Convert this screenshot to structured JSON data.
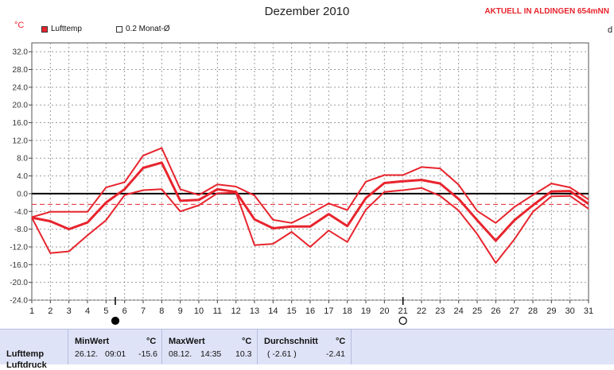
{
  "header": {
    "title": "Dezember 2010",
    "location": "AKTUELL IN ALDINGEN 654mNN",
    "unit": "°C",
    "edge_letter": "d"
  },
  "legend": [
    {
      "label": "Lufttemp",
      "color": "#e8242d",
      "filled": true
    },
    {
      "label": "0.2 Monat-Ø",
      "color": "#ffffff",
      "filled": false
    }
  ],
  "chart_data": {
    "type": "line",
    "x": [
      1,
      2,
      3,
      4,
      5,
      6,
      7,
      8,
      9,
      10,
      11,
      12,
      13,
      14,
      15,
      16,
      17,
      18,
      19,
      20,
      21,
      22,
      23,
      24,
      25,
      26,
      27,
      28,
      29,
      30,
      31
    ],
    "xlim": [
      1,
      31
    ],
    "ylim": [
      -24,
      34
    ],
    "yticks": [
      32.0,
      28.0,
      24.0,
      20.0,
      16.0,
      12.0,
      8.0,
      4.0,
      0.0,
      -4.0,
      -8.0,
      -12.0,
      -16.0,
      -20.0,
      -24.0
    ],
    "ytick_labels": [
      "32.0",
      "28.0",
      "24.0",
      "20.0",
      "16.0",
      "12.0",
      "8.0",
      "4.0",
      "0.0",
      "-4.0",
      "-8.0",
      "-12.0",
      "-16.0",
      "-20.0",
      "-24.0"
    ],
    "xtick_labels": [
      "1",
      "2",
      "3",
      "4",
      "5",
      "6",
      "7",
      "8",
      "9",
      "10",
      "11",
      "12",
      "13",
      "14",
      "15",
      "16",
      "17",
      "18",
      "19",
      "20",
      "21",
      "22",
      "23",
      "24",
      "25",
      "26",
      "27",
      "28",
      "29",
      "30",
      "31"
    ],
    "grid": true,
    "series": [
      {
        "role": "max",
        "color": "#e8242d",
        "values": [
          -5.3,
          -4.1,
          -4.1,
          -4.1,
          1.4,
          2.6,
          8.6,
          10.3,
          1.0,
          -0.3,
          2.1,
          1.6,
          -0.4,
          -5.9,
          -6.6,
          -4.5,
          -2.2,
          -3.7,
          2.7,
          4.2,
          4.2,
          6.0,
          5.7,
          2.0,
          -3.9,
          -6.6,
          -3.0,
          -0.3,
          2.3,
          1.4,
          -1.3
        ]
      },
      {
        "role": "mean",
        "color": "#e8242d",
        "values": [
          -5.4,
          -6.2,
          -8.0,
          -6.5,
          -2.0,
          1.0,
          5.8,
          7.0,
          -1.6,
          -1.4,
          1.0,
          0.4,
          -5.8,
          -7.8,
          -7.4,
          -7.4,
          -4.6,
          -7.3,
          -1.0,
          2.4,
          2.8,
          3.1,
          2.3,
          -1.2,
          -6.0,
          -10.6,
          -6.0,
          -2.6,
          0.5,
          0.6,
          -2.3
        ]
      },
      {
        "role": "min",
        "color": "#e8242d",
        "values": [
          -5.4,
          -13.4,
          -13.0,
          -9.4,
          -6.0,
          -0.3,
          0.8,
          1.0,
          -4.0,
          -2.6,
          0.1,
          0.2,
          -11.6,
          -11.3,
          -8.6,
          -12.0,
          -8.3,
          -10.9,
          -3.6,
          0.4,
          0.8,
          1.3,
          -0.5,
          -3.8,
          -9.1,
          -15.6,
          -10.3,
          -4.1,
          -0.6,
          -0.5,
          -3.4
        ]
      }
    ],
    "month_average": -2.41,
    "moon_phases": [
      {
        "day": 5.5,
        "phase": "new"
      },
      {
        "day": 21.0,
        "phase": "full"
      }
    ]
  },
  "stats": {
    "row_label": "Lufttemp",
    "row_label2": "Luftdruck",
    "unit": "°C",
    "min": {
      "header": "MinWert",
      "date": "26.12.",
      "time": "09:01",
      "value": "-15.6"
    },
    "max": {
      "header": "MaxWert",
      "date": "08.12.",
      "time": "14:35",
      "value": "10.3"
    },
    "avg": {
      "header": "Durchschnitt",
      "paren": "( -2.61 )",
      "value": "-2.41"
    }
  }
}
